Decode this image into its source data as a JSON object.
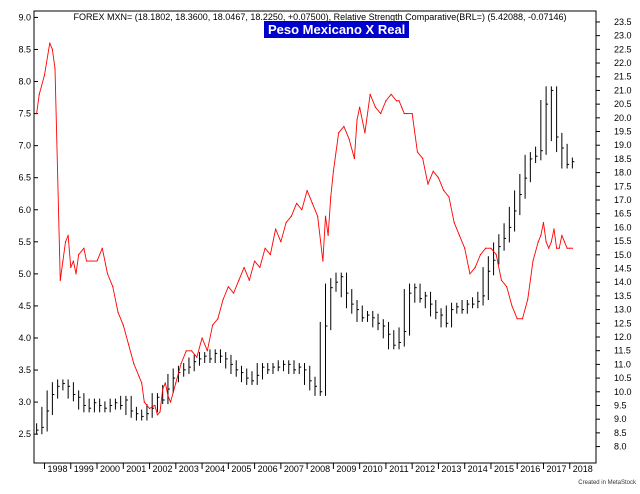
{
  "header": {
    "indicator_text": "FOREX MXN= (18.1802, 18.3600, 18.0467, 18.2250, +0.07500), Relative Strength Comparative(BRL=) (5.42088, -0.07146)",
    "title": "Peso Mexicano X Real",
    "credit": "Created in MetaStock"
  },
  "colors": {
    "price": "#000000",
    "relative_strength": "#ff0000",
    "title_bg": "#0000cc",
    "frame": "#000000"
  },
  "chart_data": {
    "type": "line",
    "title": "Peso Mexicano X Real",
    "x_ticks": [
      "1998",
      "1999",
      "2000",
      "2001",
      "2002",
      "2003",
      "2004",
      "2005",
      "2006",
      "2007",
      "2008",
      "2009",
      "2010",
      "2011",
      "2012",
      "2013",
      "2014",
      "2015",
      "2016",
      "2017",
      "2018"
    ],
    "xlim": [
      1997.6,
      2019.0
    ],
    "left_axis": {
      "ticks": [
        "2.5",
        "3.0",
        "3.5",
        "4.0",
        "4.5",
        "5.0",
        "5.5",
        "6.0",
        "6.5",
        "7.0",
        "7.5",
        "8.0",
        "8.5",
        "9.0"
      ],
      "ylim": [
        2.05,
        9.1
      ]
    },
    "right_axis": {
      "ticks": [
        "8.0",
        "8.5",
        "9.0",
        "9.5",
        "10.0",
        "10.5",
        "11.0",
        "11.5",
        "12.0",
        "12.5",
        "13.0",
        "13.5",
        "14.0",
        "14.5",
        "15.0",
        "15.5",
        "16.0",
        "16.5",
        "17.0",
        "17.5",
        "18.0",
        "18.5",
        "19.0",
        "19.5",
        "20.0",
        "20.5",
        "21.0",
        "21.5",
        "22.0",
        "22.5",
        "23.0",
        "23.5"
      ],
      "ylim": [
        7.4,
        23.9
      ]
    },
    "series": [
      {
        "name": "FOREX MXN=",
        "axis": "right",
        "style": "hlc-bars",
        "x": [
          1997.7,
          1997.9,
          1998.1,
          1998.3,
          1998.5,
          1998.7,
          1998.9,
          1999.1,
          1999.3,
          1999.5,
          1999.7,
          1999.9,
          2000.1,
          2000.3,
          2000.5,
          2000.7,
          2000.9,
          2001.1,
          2001.3,
          2001.5,
          2001.7,
          2001.9,
          2002.1,
          2002.3,
          2002.5,
          2002.7,
          2002.9,
          2003.1,
          2003.3,
          2003.5,
          2003.7,
          2003.9,
          2004.1,
          2004.3,
          2004.5,
          2004.7,
          2004.9,
          2005.1,
          2005.3,
          2005.5,
          2005.7,
          2005.9,
          2006.1,
          2006.3,
          2006.5,
          2006.7,
          2006.9,
          2007.1,
          2007.3,
          2007.5,
          2007.7,
          2007.9,
          2008.1,
          2008.3,
          2008.5,
          2008.7,
          2008.9,
          2009.1,
          2009.3,
          2009.5,
          2009.7,
          2009.9,
          2010.1,
          2010.3,
          2010.5,
          2010.7,
          2010.9,
          2011.1,
          2011.3,
          2011.5,
          2011.7,
          2011.9,
          2012.1,
          2012.3,
          2012.5,
          2012.7,
          2012.9,
          2013.1,
          2013.3,
          2013.5,
          2013.7,
          2013.9,
          2014.1,
          2014.3,
          2014.5,
          2014.7,
          2014.9,
          2015.1,
          2015.3,
          2015.5,
          2015.7,
          2015.9,
          2016.1,
          2016.3,
          2016.5,
          2016.7,
          2016.9,
          2017.1,
          2017.3,
          2017.5,
          2017.7,
          2017.9,
          2018.1
        ],
        "values": [
          8.6,
          8.7,
          9.3,
          9.9,
          10.2,
          10.3,
          10.2,
          9.9,
          9.8,
          9.5,
          9.4,
          9.6,
          9.5,
          9.4,
          9.5,
          9.6,
          9.5,
          9.7,
          9.3,
          9.2,
          9.1,
          9.2,
          9.4,
          9.8,
          9.7,
          10.1,
          10.5,
          10.7,
          10.8,
          10.9,
          11.1,
          11.2,
          11.3,
          11.2,
          11.4,
          11.3,
          11.2,
          11.0,
          10.8,
          10.7,
          10.5,
          10.4,
          10.6,
          10.9,
          10.8,
          10.9,
          10.9,
          11.0,
          11.0,
          10.8,
          10.9,
          10.8,
          10.4,
          10.2,
          10.0,
          12.4,
          13.8,
          14.0,
          14.2,
          13.6,
          13.2,
          13.0,
          12.7,
          12.8,
          12.7,
          12.5,
          12.4,
          12.1,
          11.7,
          11.8,
          12.2,
          13.6,
          13.8,
          13.4,
          13.5,
          13.2,
          12.9,
          12.8,
          12.5,
          13.0,
          13.1,
          13.0,
          13.2,
          13.2,
          13.3,
          13.5,
          14.4,
          14.8,
          15.3,
          15.6,
          16.0,
          16.6,
          17.2,
          17.8,
          18.5,
          18.6,
          18.8,
          20.5,
          21.0,
          19.3,
          18.9,
          18.3,
          18.4
        ]
      },
      {
        "name": "Relative Strength Comparative(BRL=)",
        "axis": "left",
        "style": "line",
        "x": [
          1997.7,
          1997.8,
          1998.0,
          1998.2,
          1998.3,
          1998.4,
          1998.6,
          1998.7,
          1998.8,
          1998.9,
          1999.0,
          1999.1,
          1999.2,
          1999.3,
          1999.5,
          1999.6,
          1999.8,
          2000.0,
          2000.2,
          2000.4,
          2000.6,
          2000.8,
          2001.0,
          2001.2,
          2001.4,
          2001.6,
          2001.7,
          2001.8,
          2002.0,
          2002.2,
          2002.3,
          2002.4,
          2002.5,
          2002.6,
          2002.7,
          2002.8,
          2003.0,
          2003.2,
          2003.4,
          2003.6,
          2003.8,
          2004.0,
          2004.2,
          2004.4,
          2004.6,
          2004.8,
          2005.0,
          2005.2,
          2005.4,
          2005.6,
          2005.8,
          2006.0,
          2006.2,
          2006.4,
          2006.6,
          2006.8,
          2007.0,
          2007.2,
          2007.4,
          2007.6,
          2007.8,
          2008.0,
          2008.2,
          2008.4,
          2008.6,
          2008.7,
          2008.8,
          2008.9,
          2009.0,
          2009.1,
          2009.2,
          2009.4,
          2009.6,
          2009.8,
          2009.9,
          2010.0,
          2010.2,
          2010.4,
          2010.6,
          2010.8,
          2011.0,
          2011.2,
          2011.4,
          2011.5,
          2011.6,
          2011.7,
          2011.8,
          2012.0,
          2012.2,
          2012.4,
          2012.6,
          2012.8,
          2013.0,
          2013.2,
          2013.4,
          2013.6,
          2013.8,
          2014.0,
          2014.2,
          2014.4,
          2014.6,
          2014.8,
          2015.0,
          2015.2,
          2015.4,
          2015.6,
          2015.8,
          2016.0,
          2016.2,
          2016.4,
          2016.6,
          2016.8,
          2016.9,
          2017.0,
          2017.1,
          2017.2,
          2017.3,
          2017.4,
          2017.5,
          2017.6,
          2017.7,
          2017.8,
          2017.9,
          2018.0,
          2018.1
        ],
        "values": [
          7.5,
          7.8,
          8.1,
          8.6,
          8.5,
          8.2,
          4.9,
          5.2,
          5.5,
          5.6,
          5.1,
          5.2,
          5.0,
          5.3,
          5.4,
          5.2,
          5.2,
          5.2,
          5.4,
          5.0,
          4.8,
          4.4,
          4.2,
          3.9,
          3.6,
          3.4,
          3.3,
          3.0,
          2.9,
          2.95,
          2.8,
          2.85,
          3.2,
          3.3,
          3.1,
          3.0,
          3.3,
          3.6,
          3.8,
          3.8,
          3.7,
          4.0,
          3.8,
          4.2,
          4.3,
          4.6,
          4.8,
          4.7,
          4.9,
          5.1,
          4.9,
          5.2,
          5.1,
          5.4,
          5.3,
          5.7,
          5.5,
          5.8,
          5.9,
          6.1,
          6.0,
          6.3,
          6.1,
          5.9,
          5.2,
          5.9,
          5.6,
          6.2,
          6.6,
          6.9,
          7.2,
          7.3,
          7.1,
          6.8,
          7.4,
          7.6,
          7.2,
          7.8,
          7.6,
          7.5,
          7.7,
          7.8,
          7.7,
          7.7,
          7.6,
          7.5,
          7.5,
          7.5,
          6.9,
          6.8,
          6.4,
          6.6,
          6.5,
          6.3,
          6.2,
          5.8,
          5.6,
          5.4,
          5.0,
          5.1,
          5.3,
          5.4,
          5.4,
          5.3,
          4.9,
          4.8,
          4.5,
          4.3,
          4.3,
          4.6,
          5.2,
          5.5,
          5.6,
          5.8,
          5.5,
          5.4,
          5.5,
          5.7,
          5.4,
          5.4,
          5.6,
          5.5,
          5.4,
          5.4,
          5.4
        ]
      }
    ],
    "legend": "none",
    "grid": false
  }
}
